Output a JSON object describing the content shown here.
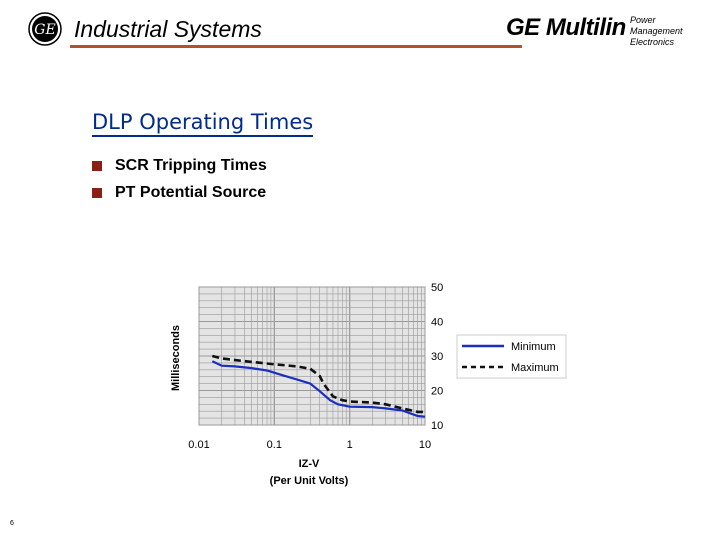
{
  "header": {
    "title": "Industrial Systems",
    "logo_icon": "ge-monogram-icon",
    "brand_name": "GE Multilin",
    "brand_tagline_line1": "Power Management",
    "brand_tagline_line2": "Electronics",
    "rule_color": "#b0522a"
  },
  "slide": {
    "title": "DLP Operating Times",
    "title_color": "#002c8a",
    "bullet_color": "#8a2015",
    "bullets": [
      "SCR Tripping Times",
      "PT Potential Source"
    ]
  },
  "page_number": "6",
  "chart_data": {
    "type": "line",
    "ylabel": "Milliseconds",
    "xlabel_line1": "IZ-V",
    "xlabel_line2": "(Per Unit Volts)",
    "xscale": "log",
    "xlim": [
      0.01,
      10
    ],
    "ylim": [
      10,
      50
    ],
    "x_ticks": [
      "0.01",
      "0.1",
      "1",
      "10"
    ],
    "y_ticks": [
      "50",
      "40",
      "30",
      "20",
      "10"
    ],
    "y_axis_side": "right",
    "grid": true,
    "plot_background": "#e4e4e4",
    "legend_position": "right",
    "series": [
      {
        "name": "Minimum",
        "color": "#1a2fc0",
        "style": "solid",
        "points": [
          [
            0.015,
            28.5
          ],
          [
            0.02,
            27.2
          ],
          [
            0.03,
            27.0
          ],
          [
            0.05,
            26.5
          ],
          [
            0.08,
            25.8
          ],
          [
            0.12,
            24.6
          ],
          [
            0.2,
            23.2
          ],
          [
            0.3,
            22.0
          ],
          [
            0.4,
            19.8
          ],
          [
            0.55,
            17.2
          ],
          [
            0.7,
            16.0
          ],
          [
            1.0,
            15.3
          ],
          [
            2.0,
            15.2
          ],
          [
            3.0,
            14.8
          ],
          [
            5.0,
            14.2
          ],
          [
            8.0,
            12.6
          ],
          [
            10,
            12.4
          ]
        ]
      },
      {
        "name": "Maximum",
        "color": "#111111",
        "style": "dashed",
        "points": [
          [
            0.015,
            30.0
          ],
          [
            0.02,
            29.3
          ],
          [
            0.03,
            28.8
          ],
          [
            0.05,
            28.3
          ],
          [
            0.1,
            27.6
          ],
          [
            0.2,
            27.0
          ],
          [
            0.3,
            26.3
          ],
          [
            0.4,
            24.2
          ],
          [
            0.45,
            22.0
          ],
          [
            0.6,
            18.3
          ],
          [
            0.8,
            17.2
          ],
          [
            1.0,
            16.8
          ],
          [
            2.0,
            16.5
          ],
          [
            3.0,
            16.0
          ],
          [
            5.0,
            14.8
          ],
          [
            8.0,
            13.8
          ],
          [
            10,
            13.8
          ]
        ]
      }
    ]
  }
}
